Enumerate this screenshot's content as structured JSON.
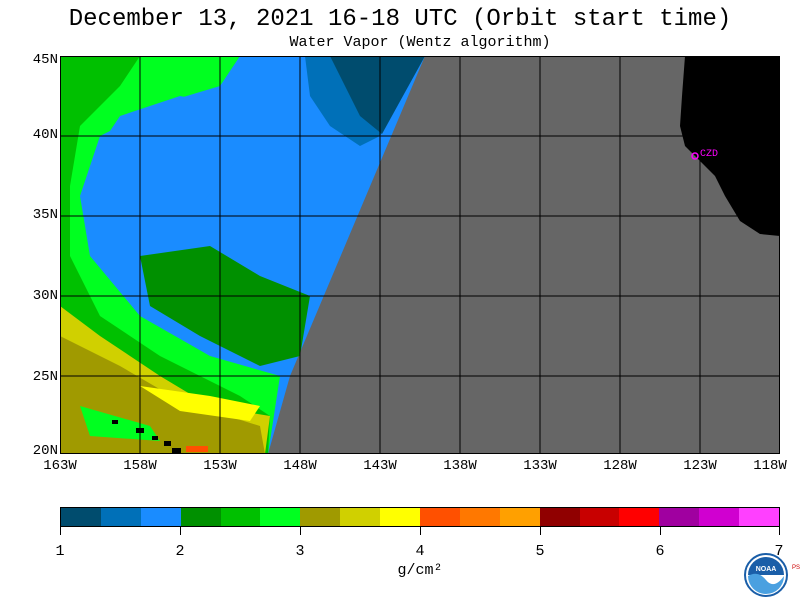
{
  "title": "December 13, 2021  16-18 UTC  (Orbit start time)",
  "subtitle": "Water Vapor (Wentz algorithm)",
  "lat_labels": [
    "45N",
    "40N",
    "35N",
    "30N",
    "25N",
    "20N"
  ],
  "lon_labels": [
    "163W",
    "158W",
    "153W",
    "148W",
    "143W",
    "138W",
    "133W",
    "128W",
    "123W",
    "118W"
  ],
  "station_label": "CZD",
  "colorbar": {
    "colors": [
      "#004c6e",
      "#0070b8",
      "#1a8cff",
      "#009000",
      "#00c000",
      "#00ff20",
      "#a09a00",
      "#d0d000",
      "#ffff00",
      "#ff5000",
      "#ff7800",
      "#ffa000",
      "#900000",
      "#c80000",
      "#ff0000",
      "#a000a0",
      "#d000d0",
      "#ff40ff"
    ],
    "ticks": [
      "1",
      "2",
      "3",
      "4",
      "5",
      "6",
      "7"
    ],
    "units": "g/cm²"
  },
  "logo": {
    "text": "NOAA",
    "side_text": "PSL",
    "icon": "noaa-logo"
  }
}
